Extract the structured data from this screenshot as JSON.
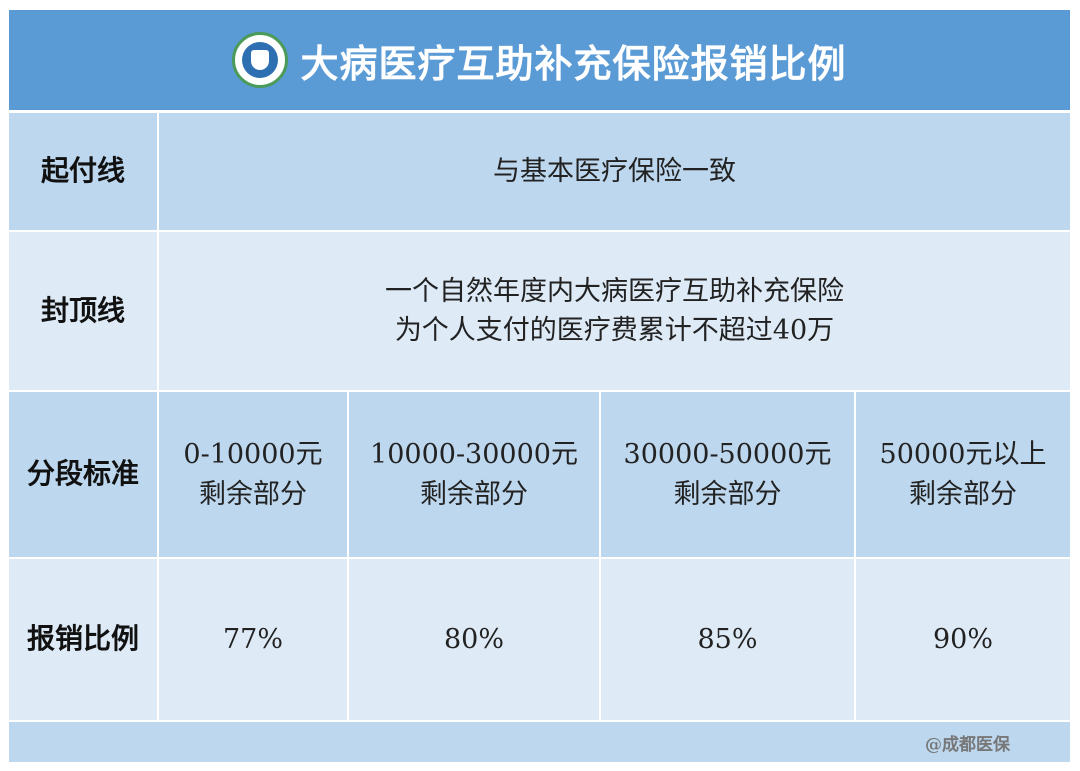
{
  "header": {
    "title": "大病医疗互助补充保险报销比例",
    "logo": "chengdu-medical-insurance-logo"
  },
  "rows": {
    "deductible": {
      "label": "起付线",
      "value": "与基本医疗保险一致"
    },
    "cap": {
      "label": "封顶线",
      "lines": [
        "一个自然年度内大病医疗互助补充保险",
        "为个人支付的医疗费累计不超过40万"
      ]
    },
    "tiers": {
      "label": "分段标准",
      "items": [
        {
          "range": "0-10000元",
          "suffix": "剩余部分"
        },
        {
          "range": "10000-30000元",
          "suffix": "剩余部分"
        },
        {
          "range": "30000-50000元",
          "suffix": "剩余部分"
        },
        {
          "range": "50000元以上",
          "suffix": "剩余部分"
        }
      ]
    },
    "ratio": {
      "label": "报销比例",
      "values": [
        "77%",
        "80%",
        "85%",
        "90%"
      ]
    }
  },
  "footer": {
    "watermark": "@成都医保"
  },
  "colors": {
    "header": "#5b9bd5",
    "dark_row": "#bdd7ee",
    "light_row": "#deebf7"
  }
}
